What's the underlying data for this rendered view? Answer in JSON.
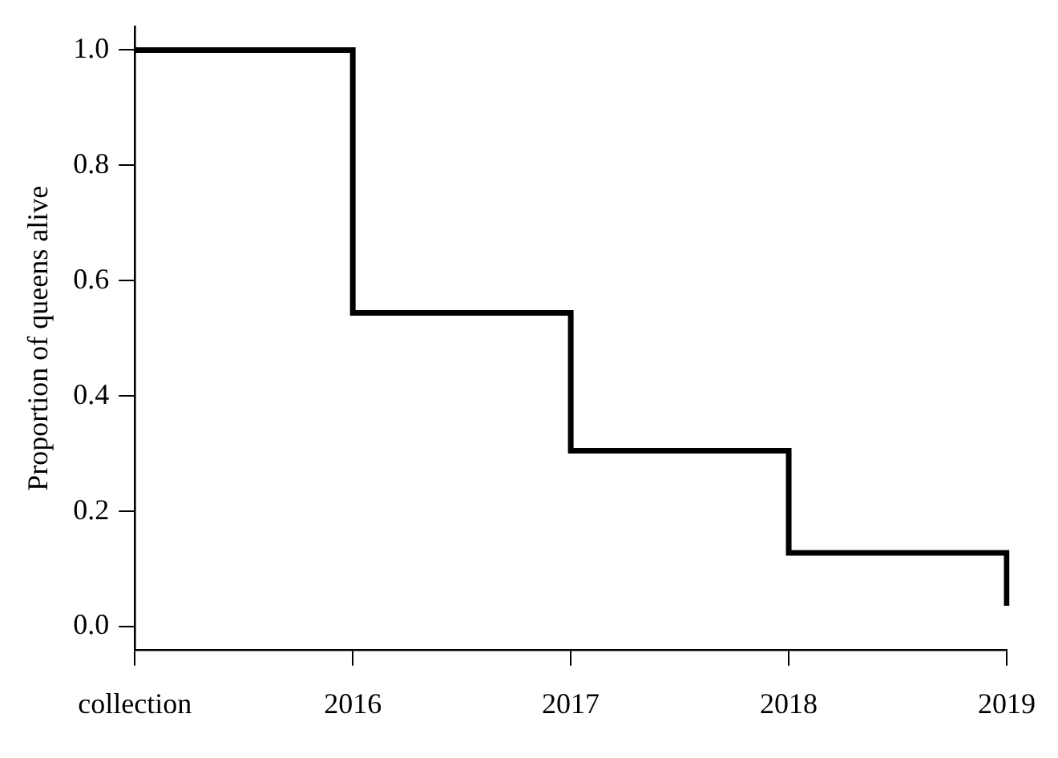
{
  "chart_data": {
    "type": "step",
    "ylabel": "Proportion of queens alive",
    "categories": [
      "collection",
      "2016",
      "2017",
      "2018",
      "2019"
    ],
    "series": [
      {
        "color": "#000000",
        "values": [
          1.0,
          0.544,
          0.305,
          0.128,
          0.036
        ]
      }
    ],
    "ylim": [
      -0.04,
      1.04
    ],
    "yticks": [
      {
        "value": 0,
        "label": "0.0"
      },
      0.2,
      0.4,
      0.6,
      0.8,
      {
        "value": 1,
        "label": "1.0"
      }
    ],
    "grid": false,
    "legend": false,
    "marker": "none",
    "line_style": "solid"
  }
}
